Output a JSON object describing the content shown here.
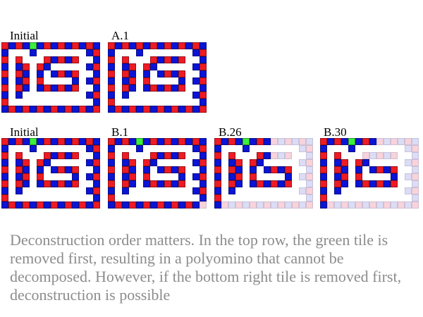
{
  "colors": {
    "red": "#ee1b24",
    "blue": "#0a14d6",
    "green": "#3cf03c",
    "faded_red": "#f7d3dc",
    "faded_blue": "#dcdcf4"
  },
  "panels": [
    {
      "id": "p-top-initial",
      "label": "Initial",
      "state": "full",
      "green": true
    },
    {
      "id": "p-top-a1",
      "label": "A.1",
      "state": "full",
      "green": false
    },
    {
      "id": "p-bot-initial",
      "label": "Initial",
      "state": "full",
      "green": true
    },
    {
      "id": "p-bot-b1",
      "label": "B.1",
      "state": "b1",
      "green": true
    },
    {
      "id": "p-bot-b26",
      "label": "B.26",
      "state": "b26",
      "green": true
    },
    {
      "id": "p-bot-b30",
      "label": "B.30",
      "state": "b30",
      "green": true
    }
  ],
  "caption": "Deconstruction order matters. In the top row, the green tile is removed first, resulting in a polyomino that cannot be decomposed. However, if the bottom right tile is removed first, deconstruction is possible"
}
